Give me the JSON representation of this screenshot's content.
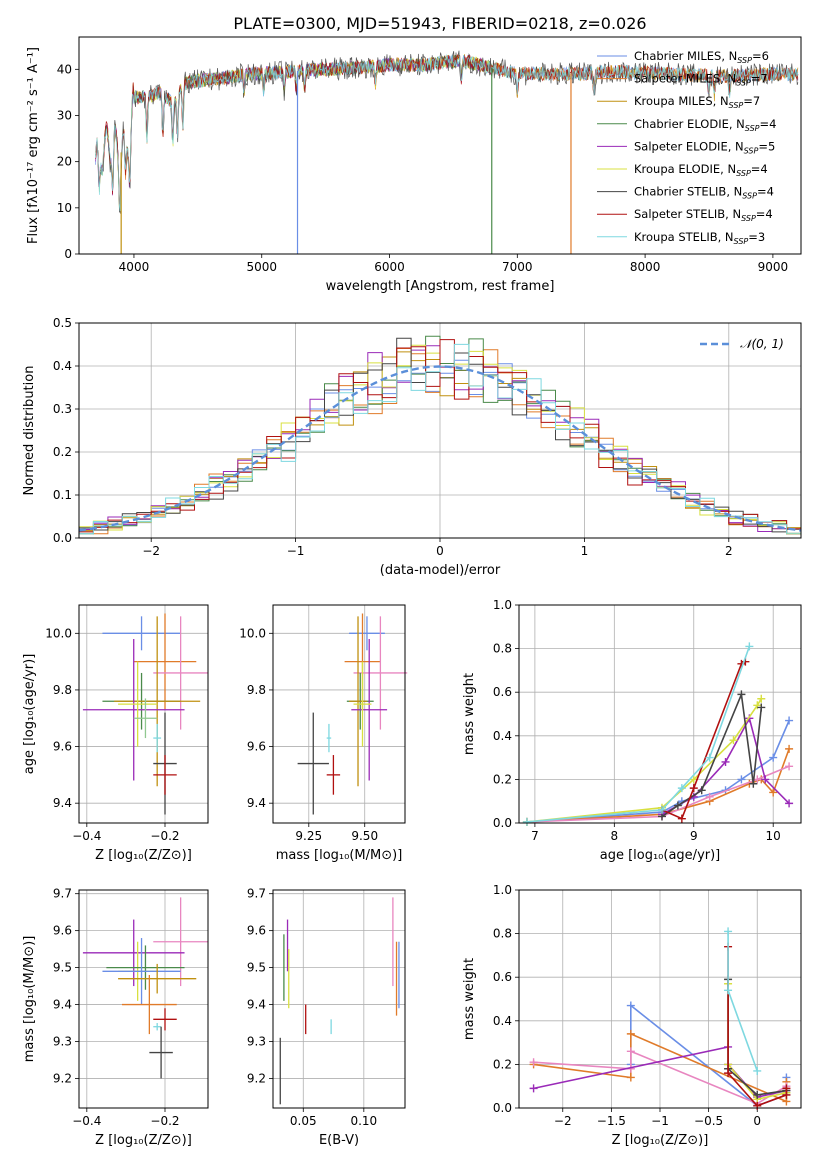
{
  "figure_title": "PLATE=0300, MJD=51943, FIBERID=0218, z=0.026",
  "colors": {
    "Chabrier MILES": "#6a8ee6",
    "Salpeter MILES": "#e07b2a",
    "Kroupa MILES": "#c09010",
    "Chabrier ELODIE": "#4a8a4a",
    "Salpeter ELODIE": "#9a2ab8",
    "Kroupa ELODIE": "#d8e040",
    "Chabrier STELIB": "#444444",
    "Salpeter STELIB": "#b01010",
    "Kroupa STELIB": "#7ed8e0",
    "pink": "#e886c0",
    "grey": "#888888",
    "lime": "#b8e070",
    "lgreen": "#90c890"
  },
  "chart_data": [
    {
      "id": "spectrum",
      "type": "line",
      "xlabel": "wavelength [Angstrom, rest frame]",
      "ylabel": "Flux [fλ10⁻¹⁷ erg cm⁻² s⁻¹ A⁻¹]",
      "xlim": [
        3570,
        9220
      ],
      "ylim": [
        0,
        47
      ],
      "xticks": [
        4000,
        5000,
        6000,
        7000,
        8000,
        9000
      ],
      "yticks": [
        0,
        10,
        20,
        30,
        40
      ],
      "grid": false,
      "legend_position": "top-right",
      "legend": [
        "Chabrier MILES, N_SSP=6",
        "Salpeter MILES, N_SSP=7",
        "Kroupa MILES, N_SSP=7",
        "Chabrier ELODIE, N_SSP=4",
        "Salpeter ELODIE, N_SSP=5",
        "Kroupa ELODIE, N_SSP=4",
        "Chabrier STELIB, N_SSP=4",
        "Salpeter STELIB, N_SSP=4",
        "Kroupa STELIB, N_SSP=3"
      ],
      "continuum": {
        "x": [
          3700,
          3800,
          3900,
          3980,
          4000,
          4100,
          4200,
          4300,
          4400,
          4500,
          4700,
          4900,
          5200,
          5500,
          5800,
          6000,
          6300,
          6560,
          6700,
          7000,
          7200,
          7500,
          7800,
          8200,
          8600,
          9000,
          9200
        ],
        "y": [
          20,
          24,
          22,
          27,
          34,
          34,
          35,
          33,
          37,
          37.5,
          38,
          39,
          39.5,
          40,
          40.5,
          41,
          41,
          42,
          41,
          39,
          39,
          39,
          39.5,
          39,
          38.5,
          39,
          39
        ]
      },
      "series": [
        {
          "name": "Chabrier MILES, N_SSP=6",
          "x_range": [
            3700,
            9200
          ]
        },
        {
          "name": "Salpeter MILES, N_SSP=7",
          "x_range": [
            3700,
            9200
          ]
        },
        {
          "name": "Kroupa MILES, N_SSP=7",
          "x_range": [
            3700,
            9200
          ]
        },
        {
          "name": "Chabrier ELODIE, N_SSP=4",
          "x_range": [
            3700,
            6800
          ]
        },
        {
          "name": "Salpeter ELODIE, N_SSP=5",
          "x_range": [
            3700,
            6800
          ]
        },
        {
          "name": "Kroupa ELODIE, N_SSP=4",
          "x_range": [
            3700,
            6800
          ]
        },
        {
          "name": "Chabrier STELIB, N_SSP=4",
          "x_range": [
            3700,
            9200
          ]
        },
        {
          "name": "Salpeter STELIB, N_SSP=4",
          "x_range": [
            3700,
            9200
          ]
        },
        {
          "name": "Kroupa STELIB, N_SSP=3",
          "x_range": [
            3700,
            9200
          ]
        }
      ],
      "dropouts": [
        {
          "x": 3900,
          "series": "Kroupa MILES, N_SSP=7"
        },
        {
          "x": 5280,
          "series": "Chabrier MILES, N_SSP=6"
        },
        {
          "x": 6800,
          "series": "Chabrier ELODIE, N_SSP=4"
        },
        {
          "x": 7420,
          "series": "Salpeter MILES, N_SSP=7"
        }
      ]
    },
    {
      "id": "residuals",
      "type": "line",
      "xlabel": "(data-model)/error",
      "ylabel": "Normed distribution",
      "xlim": [
        -2.5,
        2.5
      ],
      "ylim": [
        0,
        0.5
      ],
      "xticks": [
        -2,
        -1,
        0,
        1,
        2
      ],
      "yticks": [
        0.0,
        0.1,
        0.2,
        0.3,
        0.4,
        0.5
      ],
      "grid": true,
      "legend": "𝒩(0, 1)",
      "legend_position": "top-right",
      "bin_width": 0.1,
      "gaussian": {
        "mean": 0,
        "sigma": 1
      }
    },
    {
      "id": "age-vs-Z",
      "type": "scatter",
      "xlabel": "Z [log₁₀(Z/Z⊙)]",
      "ylabel": "age  [log₁₀(age/yr)]",
      "xlim": [
        -0.42,
        -0.09
      ],
      "ylim": [
        9.33,
        10.1
      ],
      "xticks": [
        -0.4,
        -0.2
      ],
      "yticks": [
        9.4,
        9.6,
        9.8,
        10.0
      ],
      "grid": true,
      "points": [
        {
          "color": "Chabrier MILES",
          "x": -0.26,
          "y": 10.0,
          "xerr": 0.1,
          "yerr": 0.06
        },
        {
          "color": "Salpeter MILES",
          "x": -0.2,
          "y": 9.9,
          "xerr": 0.08,
          "yerr": 0.17
        },
        {
          "color": "pink",
          "x": -0.16,
          "y": 9.86,
          "xerr": 0.07,
          "yerr": 0.2
        },
        {
          "color": "Chabrier ELODIE",
          "x": -0.26,
          "y": 9.76,
          "xerr": 0.1,
          "yerr": 0.1
        },
        {
          "color": "Kroupa MILES",
          "x": -0.22,
          "y": 9.76,
          "xerr": 0.11,
          "yerr": 0.3
        },
        {
          "color": "Salpeter ELODIE",
          "x": -0.28,
          "y": 9.73,
          "xerr": 0.13,
          "yerr": 0.25
        },
        {
          "color": "Kroupa ELODIE",
          "x": -0.27,
          "y": 9.75,
          "xerr": 0.05,
          "yerr": 0.15
        },
        {
          "color": "lgreen",
          "x": -0.25,
          "y": 9.7,
          "xerr": 0.03,
          "yerr": 0.07
        },
        {
          "color": "Kroupa STELIB",
          "x": -0.22,
          "y": 9.63,
          "xerr": 0.01,
          "yerr": 0.05
        },
        {
          "color": "Chabrier STELIB",
          "x": -0.2,
          "y": 9.54,
          "xerr": 0.03,
          "yerr": 0.18
        },
        {
          "color": "Salpeter STELIB",
          "x": -0.2,
          "y": 9.5,
          "xerr": 0.03,
          "yerr": 0.07
        }
      ]
    },
    {
      "id": "age-vs-mass",
      "type": "scatter",
      "xlabel": "mass [log₁₀(M/M⊙)]",
      "ylabel": "",
      "xlim": [
        9.09,
        9.68
      ],
      "ylim": [
        9.33,
        10.1
      ],
      "xticks": [
        9.25,
        9.5
      ],
      "xtick_labels": [
        "9.25",
        "9.50"
      ],
      "yticks": [
        9.4,
        9.6,
        9.8,
        10.0
      ],
      "grid": true,
      "points": [
        {
          "color": "Chabrier MILES",
          "x": 9.51,
          "y": 10.0,
          "xerr": 0.08,
          "yerr": 0.06
        },
        {
          "color": "Salpeter MILES",
          "x": 9.49,
          "y": 9.9,
          "xerr": 0.08,
          "yerr": 0.17
        },
        {
          "color": "pink",
          "x": 9.57,
          "y": 9.86,
          "xerr": 0.12,
          "yerr": 0.2
        },
        {
          "color": "Chabrier ELODIE",
          "x": 9.48,
          "y": 9.76,
          "xerr": 0.06,
          "yerr": 0.1
        },
        {
          "color": "Kroupa MILES",
          "x": 9.47,
          "y": 9.76,
          "xerr": 0.04,
          "yerr": 0.3
        },
        {
          "color": "Salpeter ELODIE",
          "x": 9.52,
          "y": 9.73,
          "xerr": 0.08,
          "yerr": 0.25
        },
        {
          "color": "Kroupa ELODIE",
          "x": 9.49,
          "y": 9.75,
          "xerr": 0.04,
          "yerr": 0.15
        },
        {
          "color": "Kroupa STELIB",
          "x": 9.34,
          "y": 9.63,
          "xerr": 0.01,
          "yerr": 0.05
        },
        {
          "color": "Chabrier STELIB",
          "x": 9.27,
          "y": 9.54,
          "xerr": 0.07,
          "yerr": 0.18
        },
        {
          "color": "Salpeter STELIB",
          "x": 9.36,
          "y": 9.5,
          "xerr": 0.03,
          "yerr": 0.07
        }
      ]
    },
    {
      "id": "weight-vs-age",
      "type": "line",
      "xlabel": "age  [log₁₀(age/yr)]",
      "ylabel": "mass weight",
      "xlim": [
        6.8,
        10.35
      ],
      "ylim": [
        0,
        1.0
      ],
      "xticks": [
        7,
        8,
        9,
        10
      ],
      "yticks": [
        0.0,
        0.2,
        0.4,
        0.6,
        0.8,
        1.0
      ],
      "grid": true,
      "series": [
        {
          "color": "Chabrier MILES",
          "x": [
            6.9,
            8.6,
            8.85,
            9.4,
            9.6,
            10.0,
            10.2
          ],
          "y": [
            0.005,
            0.05,
            0.1,
            0.15,
            0.2,
            0.3,
            0.47
          ]
        },
        {
          "color": "Salpeter MILES",
          "x": [
            6.9,
            8.6,
            9.2,
            9.7,
            9.85,
            10.0,
            10.2
          ],
          "y": [
            0.005,
            0.04,
            0.1,
            0.18,
            0.2,
            0.14,
            0.34
          ]
        },
        {
          "color": "pink",
          "x": [
            6.9,
            8.6,
            9.2,
            9.8,
            10.2
          ],
          "y": [
            0.005,
            0.03,
            0.12,
            0.2,
            0.26
          ]
        },
        {
          "color": "Salpeter ELODIE",
          "x": [
            8.6,
            9.0,
            9.4,
            9.7,
            9.9,
            10.2
          ],
          "y": [
            0.04,
            0.12,
            0.28,
            0.48,
            0.2,
            0.09
          ]
        },
        {
          "color": "Kroupa ELODIE",
          "x": [
            6.9,
            8.6,
            9.0,
            9.5,
            9.8,
            9.85
          ],
          "y": [
            0.005,
            0.07,
            0.2,
            0.38,
            0.54,
            0.57
          ]
        },
        {
          "color": "Chabrier STELIB",
          "x": [
            8.6,
            8.8,
            9.1,
            9.6,
            9.75,
            9.85
          ],
          "y": [
            0.03,
            0.08,
            0.15,
            0.59,
            0.18,
            0.53
          ]
        },
        {
          "color": "Salpeter STELIB",
          "x": [
            8.6,
            8.85,
            9.0,
            9.6,
            9.65
          ],
          "y": [
            0.06,
            0.02,
            0.16,
            0.73,
            0.74
          ]
        },
        {
          "color": "Kroupa STELIB",
          "x": [
            6.9,
            8.6,
            8.85,
            9.2,
            9.7
          ],
          "y": [
            0.005,
            0.06,
            0.16,
            0.3,
            0.81
          ]
        }
      ]
    },
    {
      "id": "mass-vs-Z",
      "type": "scatter",
      "xlabel": "Z [log₁₀(Z/Z⊙)]",
      "ylabel": "mass [log₁₀(M/M⊙)]",
      "xlim": [
        -0.42,
        -0.09
      ],
      "ylim": [
        9.12,
        9.71
      ],
      "xticks": [
        -0.4,
        -0.2
      ],
      "yticks": [
        9.2,
        9.3,
        9.4,
        9.5,
        9.6,
        9.7
      ],
      "grid": true,
      "points": [
        {
          "color": "pink",
          "x": -0.16,
          "y": 9.57,
          "xerr": 0.07,
          "yerr": 0.12
        },
        {
          "color": "Salpeter ELODIE",
          "x": -0.28,
          "y": 9.54,
          "xerr": 0.13,
          "yerr": 0.09
        },
        {
          "color": "Kroupa ELODIE",
          "x": -0.27,
          "y": 9.49,
          "xerr": 0.05,
          "yerr": 0.08
        },
        {
          "color": "Chabrier ELODIE",
          "x": -0.25,
          "y": 9.5,
          "xerr": 0.1,
          "yerr": 0.06
        },
        {
          "color": "Chabrier MILES",
          "x": -0.26,
          "y": 9.49,
          "xerr": 0.1,
          "yerr": 0.09
        },
        {
          "color": "Kroupa MILES",
          "x": -0.22,
          "y": 9.47,
          "xerr": 0.1,
          "yerr": 0.04
        },
        {
          "color": "Salpeter MILES",
          "x": -0.24,
          "y": 9.4,
          "xerr": 0.07,
          "yerr": 0.08
        },
        {
          "color": "Kroupa STELIB",
          "x": -0.22,
          "y": 9.34,
          "xerr": 0.01,
          "yerr": 0.01
        },
        {
          "color": "Salpeter STELIB",
          "x": -0.2,
          "y": 9.36,
          "xerr": 0.03,
          "yerr": 0.03
        },
        {
          "color": "Chabrier STELIB",
          "x": -0.21,
          "y": 9.27,
          "xerr": 0.03,
          "yerr": 0.07
        }
      ]
    },
    {
      "id": "mass-vs-EBV",
      "type": "scatter",
      "xlabel": "E(B-V)",
      "ylabel": "",
      "xlim": [
        0.025,
        0.134
      ],
      "ylim": [
        9.12,
        9.71
      ],
      "xticks": [
        0.05,
        0.1
      ],
      "xtick_labels": [
        "0.05",
        "0.10"
      ],
      "yticks": [
        9.2,
        9.3,
        9.4,
        9.5,
        9.6,
        9.7
      ],
      "grid": true,
      "points": [
        {
          "color": "Chabrier STELIB",
          "x": 0.031,
          "y": 9.22,
          "xerr": 0,
          "yerr": 0.09
        },
        {
          "color": "Salpeter ELODIE",
          "x": 0.037,
          "y": 9.56,
          "xerr": 0,
          "yerr": 0.07
        },
        {
          "color": "Kroupa ELODIE",
          "x": 0.038,
          "y": 9.47,
          "xerr": 0,
          "yerr": 0.08
        },
        {
          "color": "Chabrier ELODIE",
          "x": 0.034,
          "y": 9.5,
          "xerr": 0,
          "yerr": 0.09
        },
        {
          "color": "Salpeter STELIB",
          "x": 0.052,
          "y": 9.36,
          "xerr": 0,
          "yerr": 0.04
        },
        {
          "color": "Kroupa STELIB",
          "x": 0.073,
          "y": 9.34,
          "xerr": 0,
          "yerr": 0.02
        },
        {
          "color": "pink",
          "x": 0.124,
          "y": 9.57,
          "xerr": 0,
          "yerr": 0.12
        },
        {
          "color": "Salpeter MILES",
          "x": 0.127,
          "y": 9.47,
          "xerr": 0,
          "yerr": 0.1
        },
        {
          "color": "Chabrier MILES",
          "x": 0.129,
          "y": 9.48,
          "xerr": 0,
          "yerr": 0.09
        }
      ]
    },
    {
      "id": "weight-vs-Z",
      "type": "line",
      "xlabel": "Z [log₁₀(Z/Z⊙)]",
      "ylabel": "mass weight",
      "xlim": [
        -2.45,
        0.45
      ],
      "ylim": [
        0,
        1.0
      ],
      "xticks": [
        -2.0,
        -1.5,
        -1.0,
        -0.5,
        0.0
      ],
      "yticks": [
        0.0,
        0.2,
        0.4,
        0.6,
        0.8,
        1.0
      ],
      "grid": true,
      "series": [
        {
          "color": "Chabrier MILES",
          "x": [
            -1.3,
            -1.3,
            0.0,
            0.3,
            0.3
          ],
          "y": [
            0.2,
            0.47,
            0.01,
            0.06,
            0.14
          ]
        },
        {
          "color": "Salpeter MILES",
          "x": [
            -2.3,
            -1.3,
            -1.3,
            0.3,
            0.3
          ],
          "y": [
            0.2,
            0.14,
            0.34,
            0.03,
            0.12
          ]
        },
        {
          "color": "pink",
          "x": [
            -2.3,
            -1.3,
            -1.3,
            0.0,
            0.3
          ],
          "y": [
            0.21,
            0.18,
            0.26,
            0.02,
            0.1
          ]
        },
        {
          "color": "Salpeter ELODIE",
          "x": [
            -2.3,
            -0.3,
            -0.3,
            0.0,
            0.3
          ],
          "y": [
            0.09,
            0.28,
            0.2,
            0.05,
            0.08
          ]
        },
        {
          "color": "Kroupa ELODIE",
          "x": [
            -0.3,
            -0.3,
            0.0,
            0.3
          ],
          "y": [
            0.57,
            0.2,
            0.04,
            0.07
          ]
        },
        {
          "color": "Chabrier STELIB",
          "x": [
            -0.3,
            -0.3,
            0.0,
            0.3
          ],
          "y": [
            0.59,
            0.18,
            0.06,
            0.08
          ]
        },
        {
          "color": "Salpeter STELIB",
          "x": [
            -0.3,
            -0.3,
            0.0,
            0.3,
            0.3
          ],
          "y": [
            0.74,
            0.16,
            0.01,
            0.06,
            0.09
          ]
        },
        {
          "color": "Kroupa STELIB",
          "x": [
            -0.3,
            -0.3,
            0.0
          ],
          "y": [
            0.81,
            0.54,
            0.17
          ]
        }
      ]
    }
  ]
}
